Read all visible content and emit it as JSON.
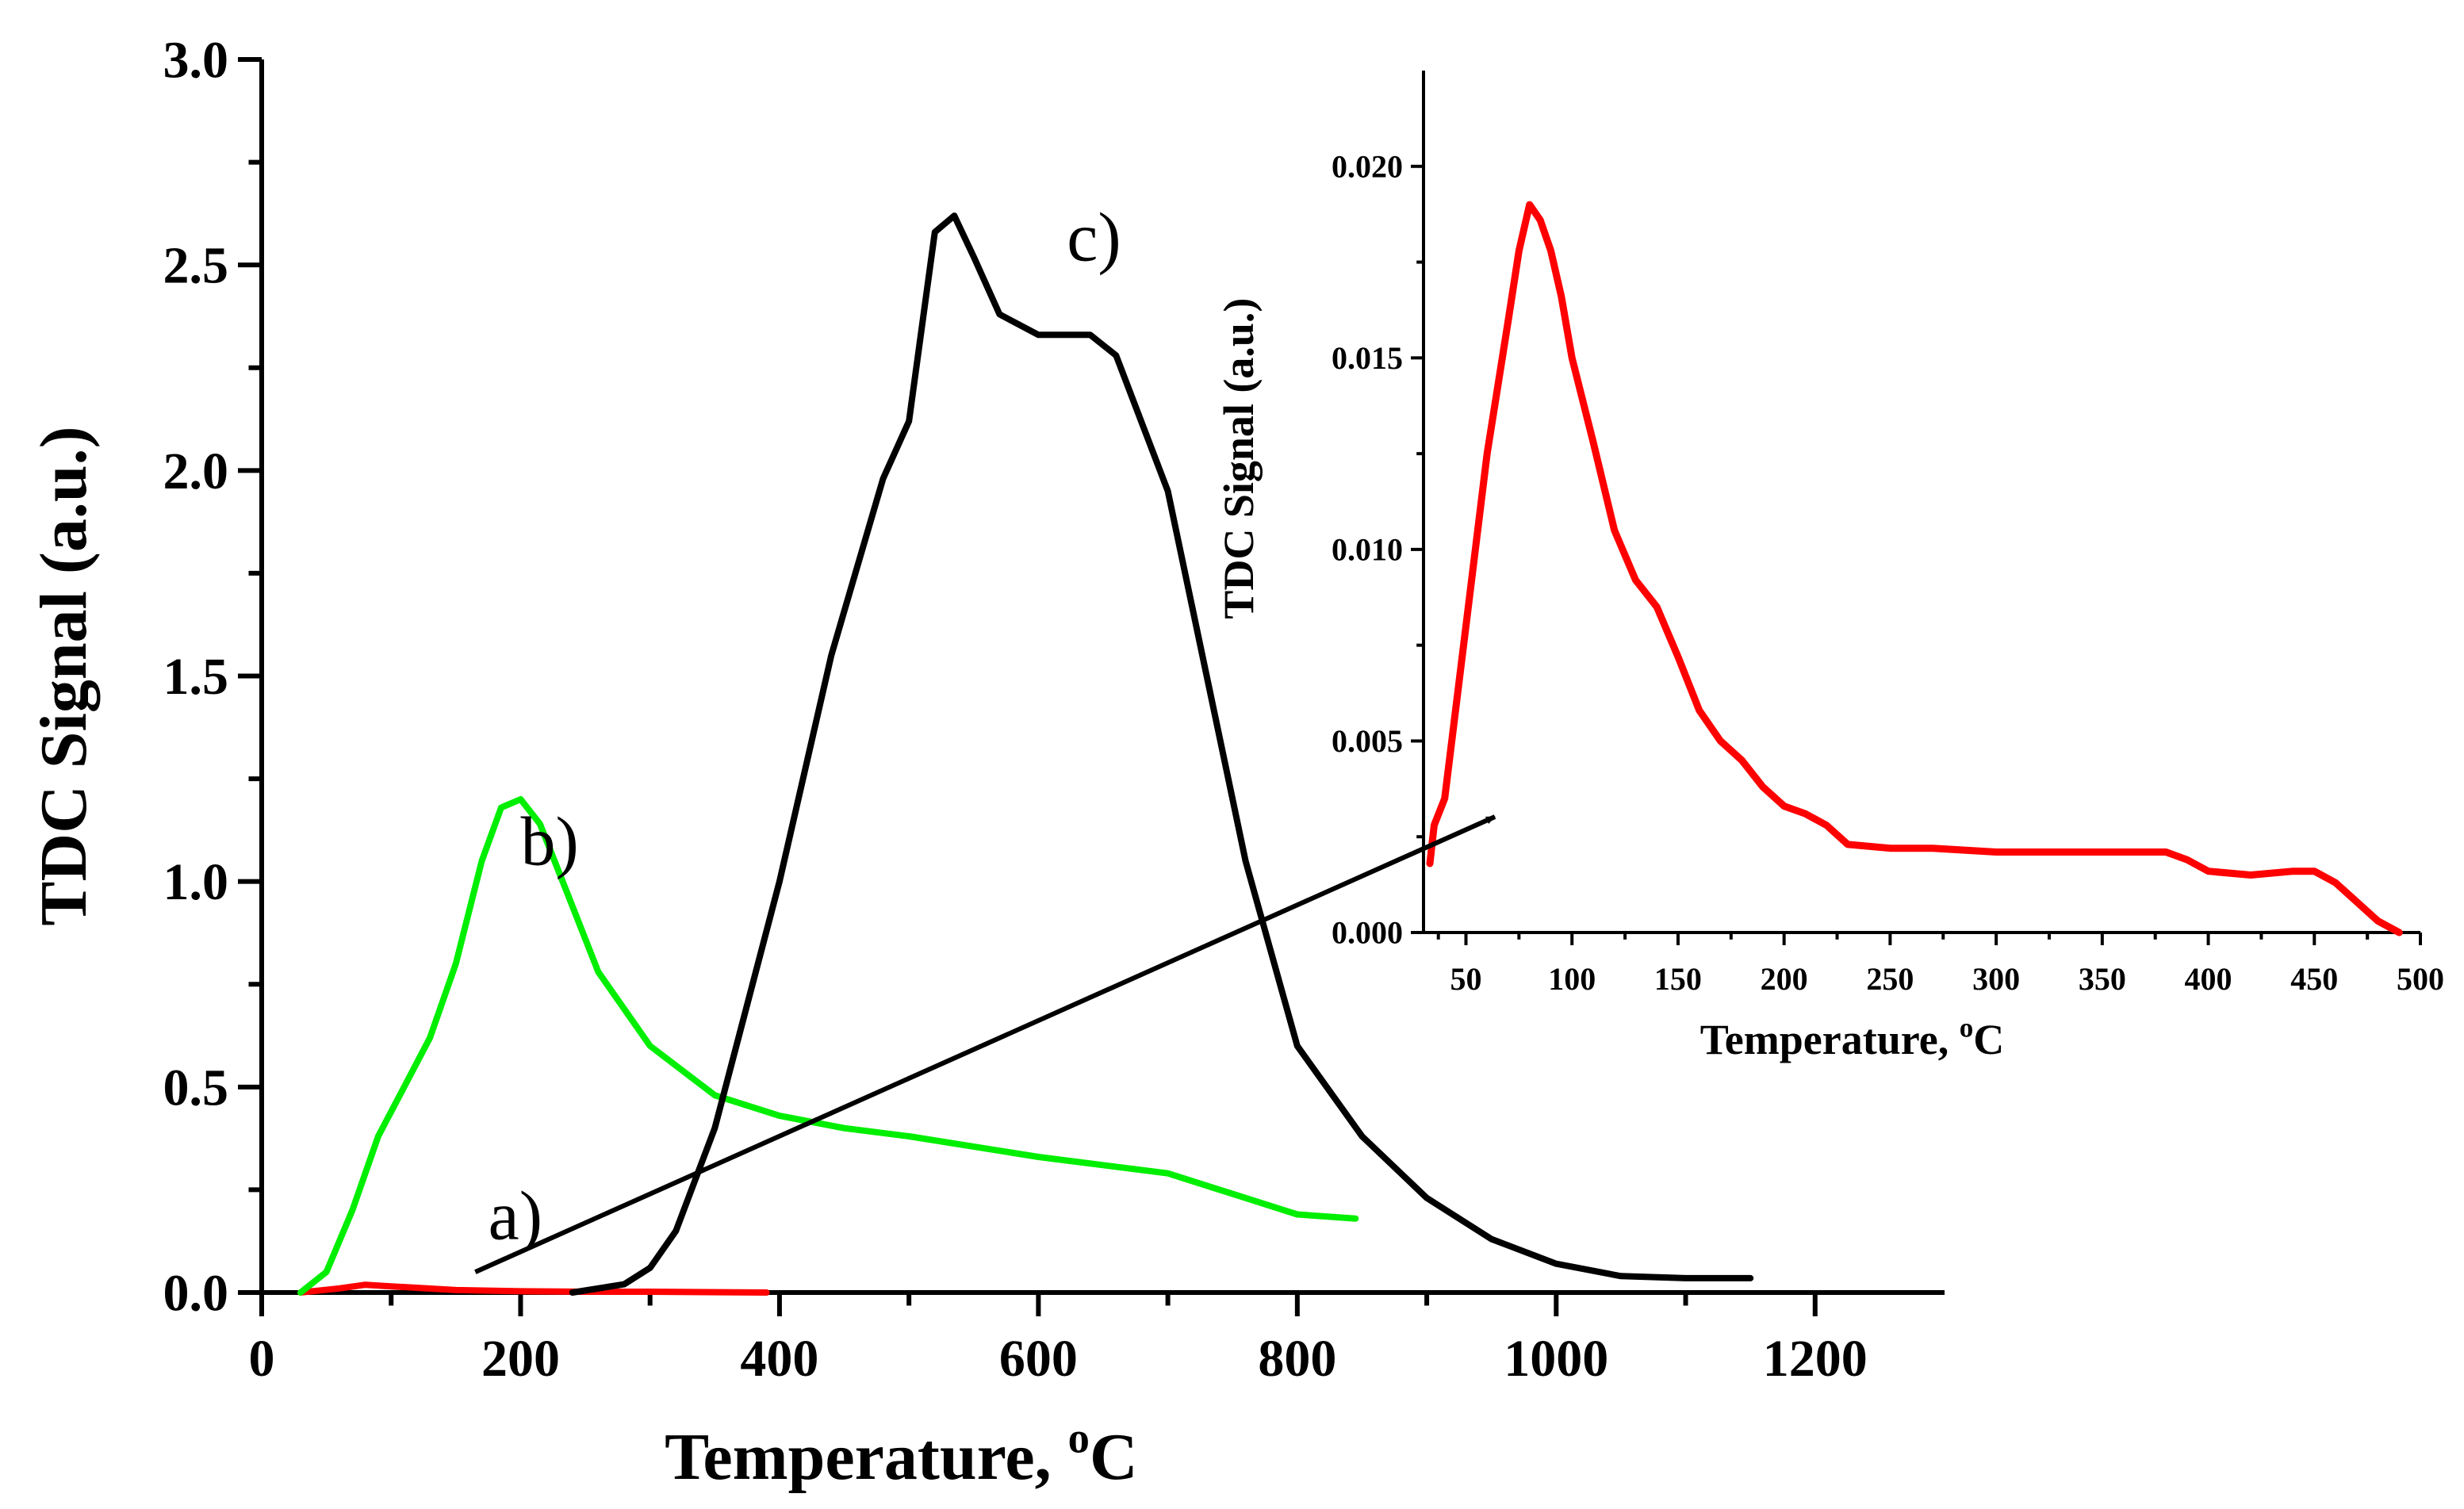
{
  "chart_data": [
    {
      "type": "line",
      "xlabel": "Temperature, ",
      "xlabel_sup": "o",
      "xlabel_unit": "C",
      "ylabel": "TDC Signal (a.u.)",
      "xlim": [
        0,
        1300
      ],
      "ylim": [
        0,
        3.0
      ],
      "x_ticks": [
        0,
        200,
        400,
        600,
        800,
        1000,
        1200
      ],
      "x_tick_labels": [
        "0",
        "200",
        "400",
        "600",
        "800",
        "1000",
        "1200"
      ],
      "y_ticks": [
        0.0,
        0.5,
        1.0,
        1.5,
        2.0,
        2.5,
        3.0
      ],
      "y_tick_labels": [
        "0.0",
        "0.5",
        "1.0",
        "1.5",
        "2.0",
        "2.5",
        "3.0"
      ],
      "series": [
        {
          "name": "a)",
          "color": "#ff0000",
          "x": [
            30,
            60,
            80,
            100,
            150,
            200,
            250,
            300,
            390
          ],
          "y": [
            0.0,
            0.01,
            0.019,
            0.015,
            0.006,
            0.003,
            0.002,
            0.002,
            0.0
          ]
        },
        {
          "name": "b)",
          "color": "#00ee00",
          "x": [
            30,
            50,
            70,
            90,
            110,
            130,
            150,
            170,
            185,
            200,
            215,
            235,
            260,
            300,
            350,
            400,
            450,
            500,
            600,
            700,
            750,
            800,
            845
          ],
          "y": [
            0.0,
            0.05,
            0.2,
            0.38,
            0.5,
            0.62,
            0.8,
            1.05,
            1.18,
            1.2,
            1.14,
            0.98,
            0.78,
            0.6,
            0.48,
            0.43,
            0.4,
            0.38,
            0.33,
            0.29,
            0.24,
            0.19,
            0.18
          ]
        },
        {
          "name": "c)",
          "color": "#000000",
          "x": [
            240,
            280,
            300,
            320,
            350,
            400,
            440,
            480,
            500,
            510,
            520,
            535,
            550,
            570,
            600,
            640,
            660,
            700,
            730,
            760,
            800,
            850,
            900,
            950,
            1000,
            1050,
            1100,
            1150
          ],
          "y": [
            0.0,
            0.02,
            0.06,
            0.15,
            0.4,
            1.0,
            1.55,
            1.98,
            2.12,
            2.35,
            2.58,
            2.62,
            2.52,
            2.38,
            2.33,
            2.33,
            2.28,
            1.95,
            1.5,
            1.05,
            0.6,
            0.38,
            0.23,
            0.13,
            0.07,
            0.04,
            0.035,
            0.035
          ]
        }
      ],
      "annotations": [
        "a)",
        "b)",
        "c)"
      ],
      "arrow": {
        "from_data": [
          165,
          0.05
        ],
        "to": "inset"
      }
    },
    {
      "type": "line",
      "xlabel": "Temperature, ",
      "xlabel_sup": "o",
      "xlabel_unit": "C",
      "ylabel": "TDC Signal (a.u.)",
      "xlim": [
        30,
        500
      ],
      "ylim": [
        0,
        0.0225
      ],
      "x_ticks": [
        50,
        100,
        150,
        200,
        250,
        300,
        350,
        400,
        450,
        500
      ],
      "x_tick_labels": [
        "50",
        "100",
        "150",
        "200",
        "250",
        "300",
        "350",
        "400",
        "450",
        "500"
      ],
      "y_ticks": [
        0.0,
        0.005,
        0.01,
        0.015,
        0.02
      ],
      "y_tick_labels": [
        "0.000",
        "0.005",
        "0.010",
        "0.015",
        "0.020"
      ],
      "series": [
        {
          "name": "a)",
          "color": "#ff0000",
          "x": [
            33,
            35,
            40,
            50,
            60,
            70,
            75,
            80,
            85,
            90,
            95,
            100,
            110,
            120,
            130,
            140,
            150,
            160,
            170,
            180,
            190,
            200,
            210,
            220,
            230,
            250,
            270,
            300,
            320,
            340,
            360,
            380,
            390,
            400,
            420,
            440,
            450,
            460,
            470,
            480,
            490
          ],
          "y": [
            0.0018,
            0.0028,
            0.0035,
            0.008,
            0.0125,
            0.016,
            0.0178,
            0.019,
            0.0186,
            0.0178,
            0.0166,
            0.015,
            0.0128,
            0.0105,
            0.0092,
            0.0085,
            0.0072,
            0.0058,
            0.005,
            0.0045,
            0.0038,
            0.0033,
            0.0031,
            0.0028,
            0.0023,
            0.0022,
            0.0022,
            0.0021,
            0.0021,
            0.0021,
            0.0021,
            0.0021,
            0.0019,
            0.0016,
            0.0015,
            0.0016,
            0.0016,
            0.0013,
            0.0008,
            0.0003,
            0.0
          ]
        }
      ]
    }
  ]
}
